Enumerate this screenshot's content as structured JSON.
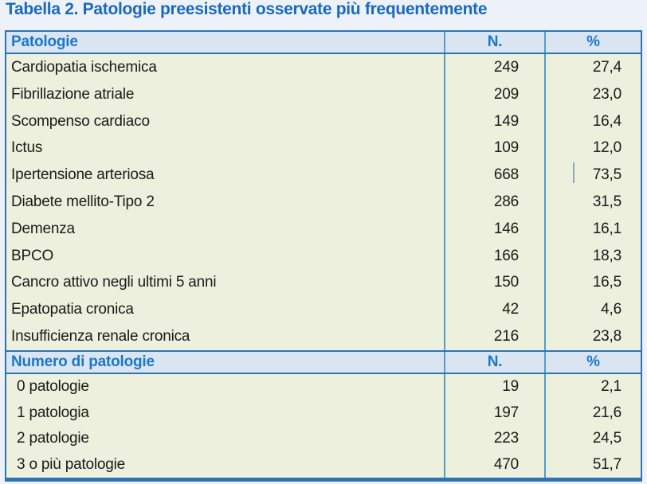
{
  "title": "Tabella 2. Patologie preesistenti osservate più frequentemente",
  "table": {
    "sections": [
      {
        "header": {
          "col1": "Patologie",
          "col2": "N.",
          "col3": "%"
        },
        "rows": [
          [
            "Cardiopatia ischemica",
            "249",
            "27,4"
          ],
          [
            "Fibrillazione atriale",
            "209",
            "23,0"
          ],
          [
            "Scompenso cardiaco",
            "149",
            "16,4"
          ],
          [
            "Ictus",
            "109",
            "12,0"
          ],
          [
            "Ipertensione arteriosa",
            "668",
            "73,5"
          ],
          [
            "Diabete mellito-Tipo 2",
            "286",
            "31,5"
          ],
          [
            "Demenza",
            "146",
            "16,1"
          ],
          [
            "BPCO",
            "166",
            "18,3"
          ],
          [
            "Cancro attivo negli ultimi 5 anni",
            "150",
            "16,5"
          ],
          [
            "Epatopatia cronica",
            "42",
            "4,6"
          ],
          [
            "Insufficienza renale cronica",
            "216",
            "23,8"
          ]
        ]
      },
      {
        "header": {
          "col1": "Numero di patologie",
          "col2": "N.",
          "col3": "%"
        },
        "rows": [
          [
            "0 patologie",
            "19",
            "2,1"
          ],
          [
            "1 patologia",
            "197",
            "21,6"
          ],
          [
            "2 patologie",
            "223",
            "24,5"
          ],
          [
            "3 o più patologie",
            "470",
            "51,7"
          ]
        ]
      }
    ]
  },
  "colors": {
    "page_background": "#edf1f8",
    "title_text": "#1a69be",
    "header_background": "#dbe5f1",
    "header_text": "#1b78c8",
    "row_background": "#ecf0dc",
    "row_text": "#1b1b1b",
    "frame_border": "#2e74b5",
    "column_divider": "#4f9fc9"
  }
}
